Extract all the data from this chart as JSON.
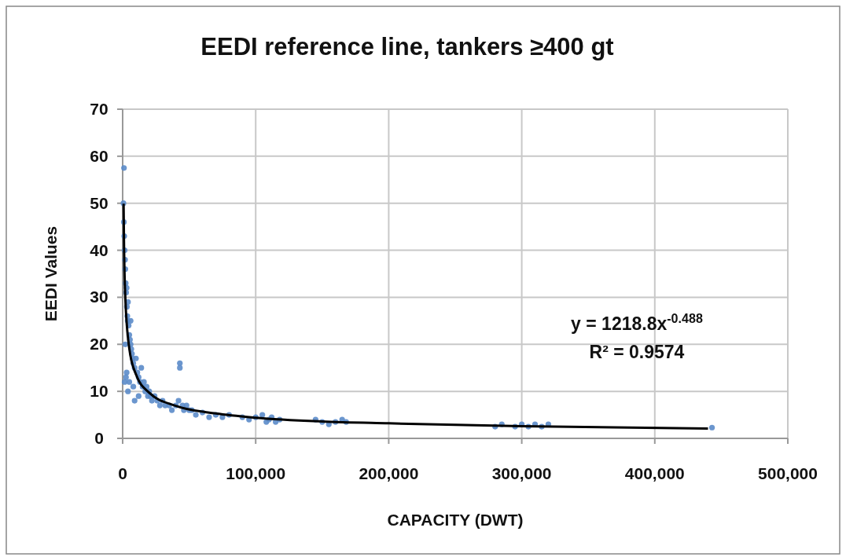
{
  "chart_data": {
    "type": "scatter",
    "title": "EEDI reference line, tankers ≥400 gt",
    "xlabel": "CAPACITY (DWT)",
    "ylabel": "EEDI Values",
    "xlim": [
      0,
      500000
    ],
    "ylim": [
      0,
      70
    ],
    "xticks": [
      0,
      {
        "value": 100000,
        "label": "100,000"
      },
      {
        "value": 200000,
        "label": "200,000"
      },
      {
        "value": 300000,
        "label": "300,000"
      },
      {
        "value": 400000,
        "label": "400,000"
      },
      {
        "value": 500000,
        "label": "500,000"
      }
    ],
    "yticks": [
      0,
      10,
      20,
      30,
      40,
      50,
      60,
      70
    ],
    "grid": true,
    "annotations": [
      "y = 1218.8x$^{-0.488}$",
      "R² = 0.9574"
    ],
    "series": [
      {
        "marker": "circle",
        "color": "#5b8bc9",
        "x": [
          1000,
          600,
          900,
          1200,
          1500,
          1800,
          2000,
          2300,
          2600,
          3000,
          3200,
          3500,
          3800,
          4000,
          4500,
          5000,
          5500,
          6000,
          6500,
          7000,
          7500,
          8000,
          9000,
          10000,
          11000,
          12000,
          13000,
          14000,
          15000,
          16000,
          17000,
          18000,
          19000,
          20000,
          21000,
          22000,
          24000,
          26000,
          28000,
          30000,
          32000,
          35000,
          37000,
          40000,
          42000,
          43000,
          43000,
          45000,
          46000,
          48000,
          50000,
          52000,
          55000,
          60000,
          65000,
          70000,
          75000,
          80000,
          90000,
          95000,
          100000,
          105000,
          108000,
          110000,
          112000,
          115000,
          118000,
          145000,
          150000,
          155000,
          160000,
          165000,
          168000,
          280000,
          285000,
          295000,
          300000,
          305000,
          310000,
          315000,
          320000,
          443000,
          3000,
          5000,
          8000,
          12000,
          2000,
          4000,
          6000,
          9000,
          1500,
          2500
        ],
        "values": [
          57.5,
          50,
          46,
          43,
          40,
          38,
          36,
          33,
          31,
          32,
          28,
          26,
          25,
          29,
          24,
          22,
          21,
          20,
          19,
          18,
          17,
          16,
          15,
          17,
          14,
          13,
          12,
          15,
          11,
          12,
          10,
          11,
          9,
          10,
          9,
          8,
          9,
          8,
          7,
          8,
          7,
          7,
          6,
          7,
          8,
          16,
          15,
          7,
          6,
          7,
          6,
          6,
          5,
          5.5,
          4.5,
          5,
          4.5,
          5,
          4.5,
          4,
          4.5,
          5,
          3.5,
          4,
          4.5,
          3.5,
          4,
          4,
          3.5,
          3,
          3.5,
          4,
          3.5,
          2.5,
          3,
          2.5,
          3,
          2.5,
          3,
          2.5,
          3,
          2.3,
          14,
          12,
          11,
          9,
          20,
          10,
          25,
          8,
          12,
          13
        ]
      },
      {
        "type": "line",
        "color": "#000000",
        "x": [
          700,
          1000,
          2000,
          5000,
          10000,
          20000,
          40000,
          70000,
          100000,
          150000,
          200000,
          300000,
          440000
        ],
        "values": [
          49.9,
          41.9,
          29.9,
          19.1,
          13.6,
          9.7,
          6.9,
          5.3,
          4.4,
          3.6,
          3.2,
          2.6,
          2.1
        ]
      }
    ]
  }
}
